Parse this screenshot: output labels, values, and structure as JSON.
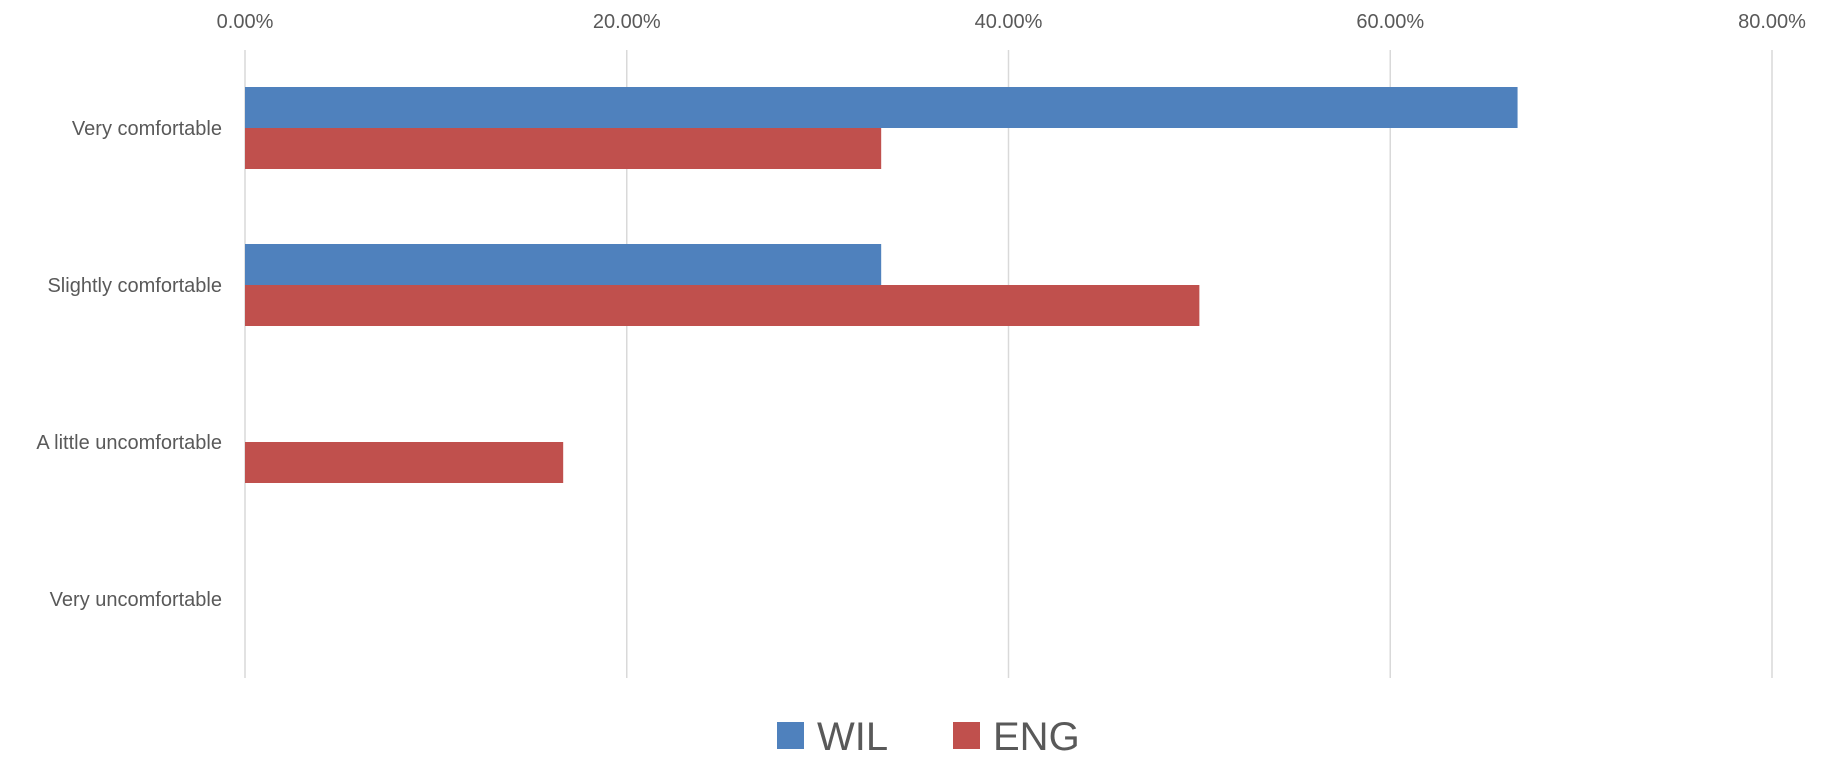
{
  "chart_data": {
    "type": "bar",
    "orientation": "horizontal",
    "x_axis_position": "top",
    "categories": [
      "Very comfortable",
      "Slightly comfortable",
      "A little uncomfortable",
      "Very uncomfortable"
    ],
    "series": [
      {
        "name": "WIL",
        "color": "#4f81bd",
        "values": [
          0.6667,
          0.3333,
          0,
          0
        ]
      },
      {
        "name": "ENG",
        "color": "#c0504d",
        "values": [
          0.3333,
          0.5,
          0.1667,
          0
        ]
      }
    ],
    "xlim": [
      0,
      0.8
    ],
    "x_ticks": [
      0,
      0.2,
      0.4,
      0.6,
      0.8
    ],
    "x_tick_labels": [
      "0.00%",
      "20.00%",
      "40.00%",
      "60.00%",
      "80.00%"
    ],
    "grid": true,
    "legend_position": "bottom-center",
    "title": "",
    "xlabel": "",
    "ylabel": ""
  }
}
